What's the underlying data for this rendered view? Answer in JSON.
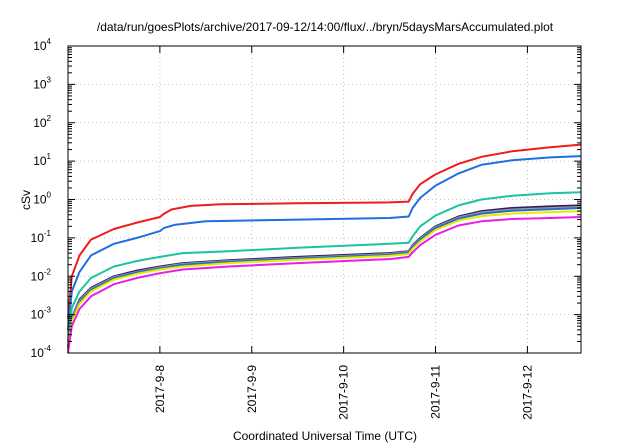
{
  "chart_data": {
    "type": "line",
    "title": "/data/run/goesPlots/archive/2017-09-12/14:00/flux/../bryn/5daysMarsAccumulated.plot",
    "xlabel": "Coordinated Universal Time (UTC)",
    "ylabel": "cSv",
    "y_scale": "log",
    "ylim": [
      0.0001,
      10000
    ],
    "xlim": [
      "2017-09-07 00:00",
      "2017-09-12 14:00"
    ],
    "grid": true,
    "legend": "none",
    "y_ticks": [
      {
        "base": "10",
        "exp": "-4",
        "value": 0.0001
      },
      {
        "base": "10",
        "exp": "-3",
        "value": 0.001
      },
      {
        "base": "10",
        "exp": "-2",
        "value": 0.01
      },
      {
        "base": "10",
        "exp": "-1",
        "value": 0.1
      },
      {
        "base": "10",
        "exp": "0",
        "value": 1
      },
      {
        "base": "10",
        "exp": "1",
        "value": 10
      },
      {
        "base": "10",
        "exp": "2",
        "value": 100
      },
      {
        "base": "10",
        "exp": "3",
        "value": 1000
      },
      {
        "base": "10",
        "exp": "4",
        "value": 10000
      }
    ],
    "x_ticks": [
      {
        "label": "2017-9-8",
        "value": "2017-09-08 00:00"
      },
      {
        "label": "2017-9-9",
        "value": "2017-09-09 00:00"
      },
      {
        "label": "2017-9-10",
        "value": "2017-09-10 00:00"
      },
      {
        "label": "2017-9-11",
        "value": "2017-09-11 00:00"
      },
      {
        "label": "2017-9-12",
        "value": "2017-09-12 00:00"
      }
    ],
    "series": [
      {
        "color": "#ee1c1c",
        "points": [
          [
            "2017-09-07 00:00",
            0.0008
          ],
          [
            "2017-09-07 01:00",
            0.01
          ],
          [
            "2017-09-07 03:00",
            0.035
          ],
          [
            "2017-09-07 06:00",
            0.09
          ],
          [
            "2017-09-07 12:00",
            0.17
          ],
          [
            "2017-09-07 18:00",
            0.25
          ],
          [
            "2017-09-08 00:00",
            0.35
          ],
          [
            "2017-09-08 01:00",
            0.42
          ],
          [
            "2017-09-08 03:00",
            0.55
          ],
          [
            "2017-09-08 08:00",
            0.68
          ],
          [
            "2017-09-08 16:00",
            0.75
          ],
          [
            "2017-09-09 12:00",
            0.8
          ],
          [
            "2017-09-10 12:00",
            0.84
          ],
          [
            "2017-09-10 17:00",
            0.88
          ],
          [
            "2017-09-10 18:00",
            1.4
          ],
          [
            "2017-09-10 20:00",
            2.5
          ],
          [
            "2017-09-11 00:00",
            4.5
          ],
          [
            "2017-09-11 06:00",
            8.5
          ],
          [
            "2017-09-11 12:00",
            13
          ],
          [
            "2017-09-11 20:00",
            18
          ],
          [
            "2017-09-12 06:00",
            23
          ],
          [
            "2017-09-12 14:00",
            27
          ]
        ]
      },
      {
        "color": "#1f6fe0",
        "points": [
          [
            "2017-09-07 00:00",
            0.0004
          ],
          [
            "2017-09-07 01:00",
            0.004
          ],
          [
            "2017-09-07 03:00",
            0.013
          ],
          [
            "2017-09-07 06:00",
            0.035
          ],
          [
            "2017-09-07 12:00",
            0.07
          ],
          [
            "2017-09-07 18:00",
            0.1
          ],
          [
            "2017-09-08 00:00",
            0.15
          ],
          [
            "2017-09-08 01:00",
            0.18
          ],
          [
            "2017-09-08 04:00",
            0.22
          ],
          [
            "2017-09-08 12:00",
            0.27
          ],
          [
            "2017-09-09 12:00",
            0.3
          ],
          [
            "2017-09-10 12:00",
            0.33
          ],
          [
            "2017-09-10 17:00",
            0.36
          ],
          [
            "2017-09-10 18:00",
            0.6
          ],
          [
            "2017-09-10 20:00",
            1.1
          ],
          [
            "2017-09-11 00:00",
            2.3
          ],
          [
            "2017-09-11 06:00",
            4.8
          ],
          [
            "2017-09-11 12:00",
            8
          ],
          [
            "2017-09-11 20:00",
            10.5
          ],
          [
            "2017-09-12 06:00",
            12.5
          ],
          [
            "2017-09-12 14:00",
            13.5
          ]
        ]
      },
      {
        "color": "#1bc4a0",
        "points": [
          [
            "2017-09-07 00:00",
            0.0002
          ],
          [
            "2017-09-07 01:00",
            0.0015
          ],
          [
            "2017-09-07 03:00",
            0.004
          ],
          [
            "2017-09-07 06:00",
            0.009
          ],
          [
            "2017-09-07 12:00",
            0.018
          ],
          [
            "2017-09-07 18:00",
            0.025
          ],
          [
            "2017-09-08 00:00",
            0.032
          ],
          [
            "2017-09-08 06:00",
            0.04
          ],
          [
            "2017-09-08 18:00",
            0.045
          ],
          [
            "2017-09-09 12:00",
            0.055
          ],
          [
            "2017-09-10 12:00",
            0.07
          ],
          [
            "2017-09-10 17:00",
            0.075
          ],
          [
            "2017-09-10 18:00",
            0.11
          ],
          [
            "2017-09-10 20:00",
            0.2
          ],
          [
            "2017-09-11 00:00",
            0.38
          ],
          [
            "2017-09-11 06:00",
            0.7
          ],
          [
            "2017-09-11 12:00",
            1.0
          ],
          [
            "2017-09-11 20:00",
            1.25
          ],
          [
            "2017-09-12 06:00",
            1.45
          ],
          [
            "2017-09-12 14:00",
            1.55
          ]
        ]
      },
      {
        "color": "#2e1a5e",
        "points": [
          [
            "2017-09-07 00:00",
            0.00015
          ],
          [
            "2017-09-07 01:00",
            0.0008
          ],
          [
            "2017-09-07 03:00",
            0.0025
          ],
          [
            "2017-09-07 06:00",
            0.005
          ],
          [
            "2017-09-07 12:00",
            0.01
          ],
          [
            "2017-09-07 18:00",
            0.014
          ],
          [
            "2017-09-08 00:00",
            0.018
          ],
          [
            "2017-09-08 06:00",
            0.022
          ],
          [
            "2017-09-08 18:00",
            0.026
          ],
          [
            "2017-09-09 12:00",
            0.032
          ],
          [
            "2017-09-10 12:00",
            0.04
          ],
          [
            "2017-09-10 17:00",
            0.045
          ],
          [
            "2017-09-10 18:00",
            0.065
          ],
          [
            "2017-09-10 20:00",
            0.1
          ],
          [
            "2017-09-11 00:00",
            0.2
          ],
          [
            "2017-09-11 06:00",
            0.36
          ],
          [
            "2017-09-11 12:00",
            0.5
          ],
          [
            "2017-09-11 20:00",
            0.6
          ],
          [
            "2017-09-12 06:00",
            0.66
          ],
          [
            "2017-09-12 14:00",
            0.7
          ]
        ]
      },
      {
        "color": "#999999",
        "points": [
          [
            "2017-09-07 00:00",
            0.00014
          ],
          [
            "2017-09-07 01:00",
            0.00075
          ],
          [
            "2017-09-07 03:00",
            0.0023
          ],
          [
            "2017-09-07 06:00",
            0.0047
          ],
          [
            "2017-09-07 12:00",
            0.0095
          ],
          [
            "2017-09-07 18:00",
            0.013
          ],
          [
            "2017-09-08 00:00",
            0.017
          ],
          [
            "2017-09-08 06:00",
            0.021
          ],
          [
            "2017-09-08 18:00",
            0.025
          ],
          [
            "2017-09-09 12:00",
            0.03
          ],
          [
            "2017-09-10 12:00",
            0.038
          ],
          [
            "2017-09-10 17:00",
            0.043
          ],
          [
            "2017-09-10 18:00",
            0.062
          ],
          [
            "2017-09-10 20:00",
            0.095
          ],
          [
            "2017-09-11 00:00",
            0.19
          ],
          [
            "2017-09-11 06:00",
            0.34
          ],
          [
            "2017-09-11 12:00",
            0.46
          ],
          [
            "2017-09-11 20:00",
            0.55
          ],
          [
            "2017-09-12 06:00",
            0.6
          ],
          [
            "2017-09-12 14:00",
            0.64
          ]
        ]
      },
      {
        "color": "#2a6dc9",
        "points": [
          [
            "2017-09-07 00:00",
            0.00013
          ],
          [
            "2017-09-07 01:00",
            0.0007
          ],
          [
            "2017-09-07 03:00",
            0.0021
          ],
          [
            "2017-09-07 06:00",
            0.0044
          ],
          [
            "2017-09-07 12:00",
            0.009
          ],
          [
            "2017-09-07 18:00",
            0.0125
          ],
          [
            "2017-09-08 00:00",
            0.016
          ],
          [
            "2017-09-08 06:00",
            0.02
          ],
          [
            "2017-09-08 18:00",
            0.024
          ],
          [
            "2017-09-09 12:00",
            0.029
          ],
          [
            "2017-09-10 12:00",
            0.036
          ],
          [
            "2017-09-10 17:00",
            0.041
          ],
          [
            "2017-09-10 18:00",
            0.058
          ],
          [
            "2017-09-10 20:00",
            0.09
          ],
          [
            "2017-09-11 00:00",
            0.18
          ],
          [
            "2017-09-11 06:00",
            0.32
          ],
          [
            "2017-09-11 12:00",
            0.43
          ],
          [
            "2017-09-11 20:00",
            0.51
          ],
          [
            "2017-09-12 06:00",
            0.56
          ],
          [
            "2017-09-12 14:00",
            0.6
          ]
        ]
      },
      {
        "color": "#e8e800",
        "points": [
          [
            "2017-09-07 00:00",
            0.00012
          ],
          [
            "2017-09-07 01:00",
            0.00065
          ],
          [
            "2017-09-07 03:00",
            0.0019
          ],
          [
            "2017-09-07 06:00",
            0.004
          ],
          [
            "2017-09-07 12:00",
            0.0082
          ],
          [
            "2017-09-07 18:00",
            0.0115
          ],
          [
            "2017-09-08 00:00",
            0.015
          ],
          [
            "2017-09-08 06:00",
            0.018
          ],
          [
            "2017-09-08 18:00",
            0.022
          ],
          [
            "2017-09-09 12:00",
            0.027
          ],
          [
            "2017-09-10 12:00",
            0.034
          ],
          [
            "2017-09-10 17:00",
            0.038
          ],
          [
            "2017-09-10 18:00",
            0.052
          ],
          [
            "2017-09-10 20:00",
            0.08
          ],
          [
            "2017-09-11 00:00",
            0.16
          ],
          [
            "2017-09-11 06:00",
            0.28
          ],
          [
            "2017-09-11 12:00",
            0.37
          ],
          [
            "2017-09-11 20:00",
            0.43
          ],
          [
            "2017-09-12 06:00",
            0.47
          ],
          [
            "2017-09-12 14:00",
            0.5
          ]
        ]
      },
      {
        "color": "#e81ee8",
        "points": [
          [
            "2017-09-07 00:00",
            0.0001
          ],
          [
            "2017-09-07 01:00",
            0.0005
          ],
          [
            "2017-09-07 03:00",
            0.0014
          ],
          [
            "2017-09-07 06:00",
            0.003
          ],
          [
            "2017-09-07 12:00",
            0.0062
          ],
          [
            "2017-09-07 18:00",
            0.009
          ],
          [
            "2017-09-08 00:00",
            0.012
          ],
          [
            "2017-09-08 06:00",
            0.015
          ],
          [
            "2017-09-08 18:00",
            0.018
          ],
          [
            "2017-09-09 12:00",
            0.022
          ],
          [
            "2017-09-10 12:00",
            0.028
          ],
          [
            "2017-09-10 17:00",
            0.032
          ],
          [
            "2017-09-10 18:00",
            0.042
          ],
          [
            "2017-09-10 20:00",
            0.065
          ],
          [
            "2017-09-11 00:00",
            0.12
          ],
          [
            "2017-09-11 06:00",
            0.21
          ],
          [
            "2017-09-11 12:00",
            0.27
          ],
          [
            "2017-09-11 20:00",
            0.31
          ],
          [
            "2017-09-12 06:00",
            0.33
          ],
          [
            "2017-09-12 14:00",
            0.35
          ]
        ]
      }
    ]
  }
}
